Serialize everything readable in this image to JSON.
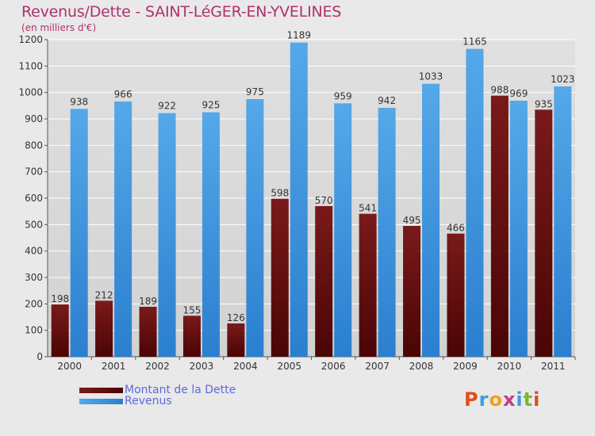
{
  "title": "Revenus/Dette - SAINT-LéGER-EN-YVELINES",
  "subtitle": "(en milliers d'€)",
  "legend": {
    "debt_label": "Montant de la Dette",
    "revenue_label": "Revenus"
  },
  "logo": {
    "letters": [
      "P",
      "r",
      "o",
      "x",
      "i",
      "t",
      "i"
    ],
    "colors": [
      "#e24e1b",
      "#3a9be0",
      "#f0a020",
      "#c23d8a",
      "#3a9be0",
      "#79b72e",
      "#e24e1b"
    ]
  },
  "colors": {
    "debt": "#7a1a1a",
    "debt_dark": "#4a0505",
    "revenue": "#55a8e8",
    "revenue_dark": "#2a7fcf",
    "title": "#b0306a",
    "background": "#e9e9e9",
    "plot_background": "#dcdcdc"
  },
  "chart_data": {
    "type": "bar",
    "categories": [
      "2000",
      "2001",
      "2002",
      "2003",
      "2004",
      "2005",
      "2006",
      "2007",
      "2008",
      "2009",
      "2010",
      "2011"
    ],
    "series": [
      {
        "name": "Montant de la Dette",
        "values": [
          198,
          212,
          189,
          155,
          126,
          598,
          570,
          541,
          495,
          466,
          988,
          935
        ]
      },
      {
        "name": "Revenus",
        "values": [
          938,
          966,
          922,
          925,
          975,
          1189,
          959,
          942,
          1033,
          1165,
          969,
          1023
        ]
      }
    ],
    "title": "Revenus/Dette - SAINT-LéGER-EN-YVELINES",
    "ylabel": "(en milliers d'€)",
    "ylim": [
      0,
      1200
    ],
    "yticks": [
      0,
      100,
      200,
      300,
      400,
      500,
      600,
      700,
      800,
      900,
      1000,
      1100,
      1200
    ],
    "grid": true,
    "legend_position": "bottom-left"
  }
}
